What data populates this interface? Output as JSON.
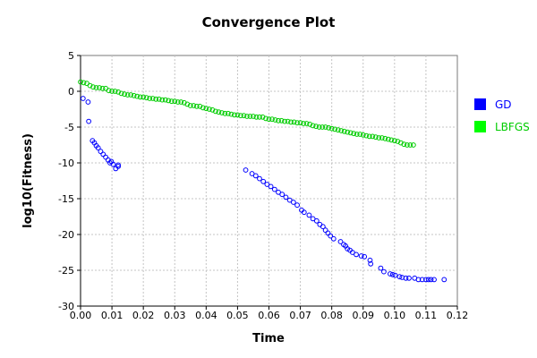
{
  "chart_data": {
    "type": "scatter",
    "title": "Convergence Plot",
    "xlabel": "Time",
    "ylabel": "log10(Fitness)",
    "xlim": [
      0.0,
      0.12
    ],
    "ylim": [
      -30,
      5
    ],
    "x_ticks": [
      "0.00",
      "0.01",
      "0.02",
      "0.03",
      "0.04",
      "0.05",
      "0.06",
      "0.07",
      "0.08",
      "0.09",
      "0.10",
      "0.11",
      "0.12"
    ],
    "y_ticks": [
      "5",
      "0",
      "-5",
      "-10",
      "-15",
      "-20",
      "-25",
      "-30"
    ],
    "grid": true,
    "legend_position": "right",
    "series": [
      {
        "name": "GD",
        "color": "#0000ff",
        "legend_color": "#0000ff",
        "x": [
          0.0008,
          0.0024,
          0.0026,
          0.0038,
          0.0044,
          0.005,
          0.0056,
          0.0064,
          0.0072,
          0.008,
          0.0088,
          0.0094,
          0.0098,
          0.0104,
          0.0112,
          0.012,
          0.012,
          0.0526,
          0.0546,
          0.0558,
          0.057,
          0.0582,
          0.0594,
          0.0606,
          0.0618,
          0.063,
          0.0642,
          0.0654,
          0.0666,
          0.0678,
          0.069,
          0.0704,
          0.0712,
          0.0728,
          0.074,
          0.0752,
          0.0762,
          0.0772,
          0.078,
          0.0788,
          0.0796,
          0.0806,
          0.0828,
          0.0838,
          0.0844,
          0.085,
          0.0858,
          0.0866,
          0.0878,
          0.0894,
          0.0904,
          0.0922,
          0.0924,
          0.0956,
          0.0966,
          0.0986,
          0.0994,
          0.1002,
          0.1016,
          0.1024,
          0.1036,
          0.1046,
          0.1064,
          0.1076,
          0.1088,
          0.11,
          0.1108,
          0.1116,
          0.1126,
          0.1158
        ],
        "y": [
          -1.0,
          -1.5,
          -4.2,
          -6.9,
          -7.2,
          -7.6,
          -7.9,
          -8.4,
          -8.8,
          -9.2,
          -9.6,
          -10.0,
          -9.8,
          -10.2,
          -10.8,
          -10.3,
          -10.5,
          -11.0,
          -11.5,
          -11.8,
          -12.2,
          -12.6,
          -13.0,
          -13.3,
          -13.7,
          -14.1,
          -14.4,
          -14.8,
          -15.2,
          -15.5,
          -15.9,
          -16.6,
          -16.9,
          -17.3,
          -17.8,
          -18.1,
          -18.6,
          -18.9,
          -19.4,
          -19.8,
          -20.2,
          -20.6,
          -21.0,
          -21.4,
          -21.6,
          -22.0,
          -22.2,
          -22.5,
          -22.8,
          -23.0,
          -23.1,
          -23.6,
          -24.1,
          -24.7,
          -25.2,
          -25.5,
          -25.6,
          -25.7,
          -25.9,
          -26.0,
          -26.1,
          -26.1,
          -26.1,
          -26.3,
          -26.3,
          -26.3,
          -26.3,
          -26.3,
          -26.3,
          -26.3
        ]
      },
      {
        "name": "LBFGS",
        "color": "#00cc00",
        "legend_color": "#00ff00",
        "x": [
          0.0,
          0.001,
          0.002,
          0.003,
          0.004,
          0.005,
          0.006,
          0.007,
          0.008,
          0.009,
          0.01,
          0.011,
          0.012,
          0.013,
          0.014,
          0.015,
          0.016,
          0.017,
          0.018,
          0.019,
          0.02,
          0.021,
          0.022,
          0.023,
          0.024,
          0.025,
          0.026,
          0.027,
          0.028,
          0.029,
          0.03,
          0.031,
          0.032,
          0.033,
          0.034,
          0.035,
          0.036,
          0.037,
          0.038,
          0.039,
          0.04,
          0.041,
          0.042,
          0.043,
          0.044,
          0.045,
          0.046,
          0.047,
          0.048,
          0.049,
          0.05,
          0.051,
          0.052,
          0.053,
          0.054,
          0.055,
          0.056,
          0.057,
          0.058,
          0.059,
          0.06,
          0.061,
          0.062,
          0.063,
          0.064,
          0.065,
          0.066,
          0.067,
          0.068,
          0.069,
          0.07,
          0.071,
          0.072,
          0.073,
          0.074,
          0.075,
          0.076,
          0.077,
          0.078,
          0.079,
          0.08,
          0.081,
          0.082,
          0.083,
          0.084,
          0.085,
          0.086,
          0.087,
          0.088,
          0.089,
          0.09,
          0.091,
          0.092,
          0.093,
          0.094,
          0.095,
          0.096,
          0.097,
          0.098,
          0.099,
          0.1,
          0.101,
          0.102,
          0.103,
          0.104,
          0.105,
          0.106
        ],
        "y": [
          1.3,
          1.2,
          1.1,
          0.8,
          0.6,
          0.5,
          0.5,
          0.4,
          0.4,
          0.1,
          0.0,
          0.0,
          -0.1,
          -0.3,
          -0.4,
          -0.5,
          -0.5,
          -0.6,
          -0.7,
          -0.8,
          -0.8,
          -0.9,
          -1.0,
          -1.0,
          -1.1,
          -1.1,
          -1.2,
          -1.2,
          -1.3,
          -1.4,
          -1.4,
          -1.5,
          -1.5,
          -1.6,
          -1.8,
          -2.0,
          -2.0,
          -2.1,
          -2.1,
          -2.3,
          -2.4,
          -2.5,
          -2.6,
          -2.8,
          -2.9,
          -3.0,
          -3.1,
          -3.1,
          -3.2,
          -3.3,
          -3.3,
          -3.4,
          -3.4,
          -3.5,
          -3.5,
          -3.5,
          -3.6,
          -3.6,
          -3.6,
          -3.8,
          -3.9,
          -3.9,
          -4.0,
          -4.1,
          -4.1,
          -4.2,
          -4.2,
          -4.3,
          -4.3,
          -4.4,
          -4.4,
          -4.5,
          -4.5,
          -4.6,
          -4.8,
          -4.9,
          -5.0,
          -5.0,
          -5.0,
          -5.1,
          -5.2,
          -5.3,
          -5.4,
          -5.5,
          -5.6,
          -5.7,
          -5.8,
          -5.9,
          -6.0,
          -6.0,
          -6.1,
          -6.2,
          -6.3,
          -6.3,
          -6.4,
          -6.5,
          -6.5,
          -6.6,
          -6.7,
          -6.8,
          -6.9,
          -7.0,
          -7.2,
          -7.4,
          -7.5,
          -7.5,
          -7.5
        ]
      }
    ]
  }
}
